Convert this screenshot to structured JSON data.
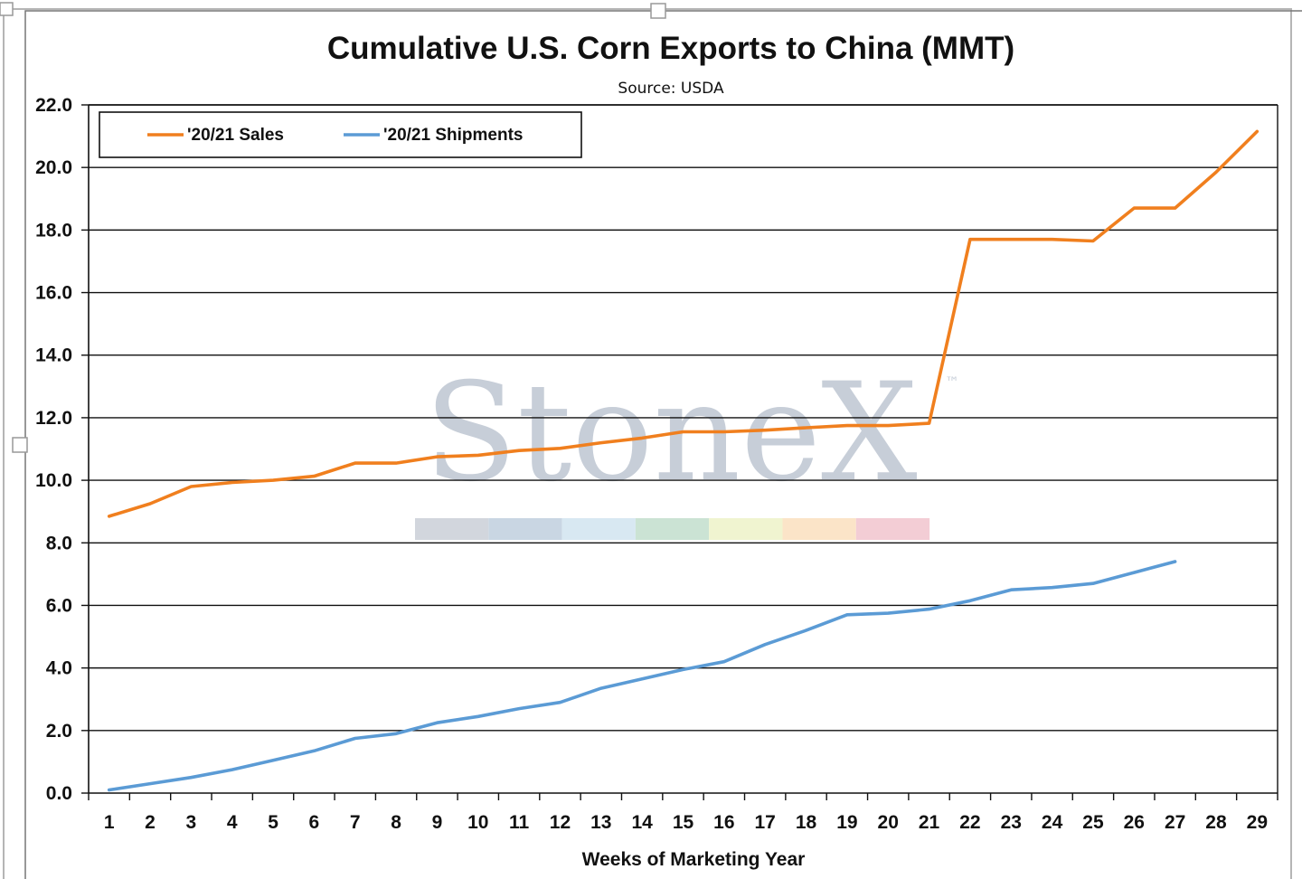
{
  "chart_data": {
    "type": "line",
    "title": "Cumulative U.S. Corn Exports to China (MMT)",
    "subtitle": "Source: USDA",
    "xlabel": "Weeks of Marketing Year",
    "ylabel": "",
    "categories": [
      "1",
      "2",
      "3",
      "4",
      "5",
      "6",
      "7",
      "8",
      "9",
      "10",
      "11",
      "12",
      "13",
      "14",
      "15",
      "16",
      "17",
      "18",
      "19",
      "20",
      "21",
      "22",
      "23",
      "24",
      "25",
      "26",
      "27",
      "28",
      "29"
    ],
    "ylim": [
      0,
      22
    ],
    "yticks": [
      "0.0",
      "2.0",
      "4.0",
      "6.0",
      "8.0",
      "10.0",
      "12.0",
      "14.0",
      "16.0",
      "18.0",
      "20.0",
      "22.0"
    ],
    "grid": true,
    "legend_position": "top-left",
    "series": [
      {
        "name": "'20/21 Sales",
        "color": "#f07f1e",
        "values": [
          8.85,
          9.25,
          9.8,
          9.93,
          10.0,
          10.13,
          10.55,
          10.55,
          10.75,
          10.8,
          10.95,
          11.02,
          11.2,
          11.35,
          11.55,
          11.55,
          11.6,
          11.68,
          11.75,
          11.75,
          11.82,
          17.7,
          17.7,
          17.7,
          17.65,
          18.7,
          18.7,
          19.85,
          21.15
        ]
      },
      {
        "name": "'20/21 Shipments",
        "color": "#5b9bd5",
        "values": [
          0.1,
          0.3,
          0.5,
          0.75,
          1.05,
          1.35,
          1.75,
          1.9,
          2.25,
          2.45,
          2.7,
          2.9,
          3.35,
          3.65,
          3.95,
          4.2,
          4.75,
          5.2,
          5.7,
          5.75,
          5.88,
          6.15,
          6.5,
          6.57,
          6.7,
          7.05,
          7.4,
          null,
          null
        ]
      }
    ],
    "watermark": {
      "text": "StoneX",
      "mark": "™",
      "colors": [
        "#d2d6dd",
        "#c9d6e3",
        "#d8e8f2",
        "#cbe3d4",
        "#f0f4d0",
        "#fbe4c8",
        "#f3cdd5"
      ]
    }
  }
}
